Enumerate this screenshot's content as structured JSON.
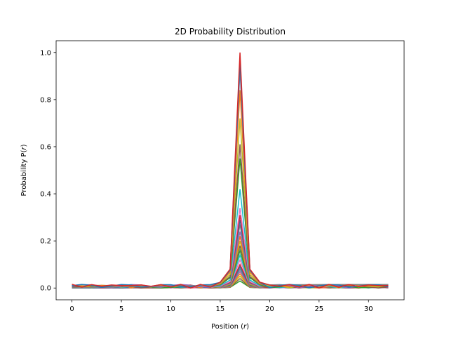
{
  "chart_data": {
    "type": "line",
    "title": "2D Probability Distribution",
    "xlabel_main": "Position (",
    "xlabel_var": "r",
    "xlabel_end": ")",
    "ylabel_main": "Probability P(",
    "ylabel_var": "r",
    "ylabel_end": ")",
    "xlim": [
      -1.6,
      33.6
    ],
    "ylim": [
      -0.05,
      1.05
    ],
    "x_ticks": [
      0,
      5,
      10,
      15,
      20,
      25,
      30
    ],
    "x_tick_labels": [
      "0",
      "5",
      "10",
      "15",
      "20",
      "25",
      "30"
    ],
    "y_ticks": [
      0.0,
      0.2,
      0.4,
      0.6,
      0.8,
      1.0
    ],
    "y_tick_labels": [
      "0.0",
      "0.2",
      "0.4",
      "0.6",
      "0.8",
      "1.0"
    ],
    "x": [
      0,
      1,
      2,
      3,
      4,
      5,
      6,
      7,
      8,
      9,
      10,
      11,
      12,
      13,
      14,
      15,
      16,
      17,
      18,
      19,
      20,
      21,
      22,
      23,
      24,
      25,
      26,
      27,
      28,
      29,
      30,
      31,
      32
    ],
    "peak_x": 17,
    "peak_heights": [
      1.0,
      0.96,
      0.94,
      0.93,
      0.84,
      0.72,
      0.61,
      0.55,
      0.42,
      0.34,
      0.31,
      0.29,
      0.27,
      0.24,
      0.22,
      0.2,
      0.18,
      0.16,
      0.14,
      0.12,
      0.1,
      0.09,
      0.08,
      0.07,
      0.06,
      0.05,
      0.04,
      0.03
    ],
    "grid": false,
    "legend": "none",
    "colors": [
      "#1f77b4",
      "#ff7f0e",
      "#2ca02c",
      "#d62728",
      "#9467bd",
      "#8c564b",
      "#e377c2",
      "#7f7f7f",
      "#bcbd22",
      "#17becf"
    ]
  }
}
